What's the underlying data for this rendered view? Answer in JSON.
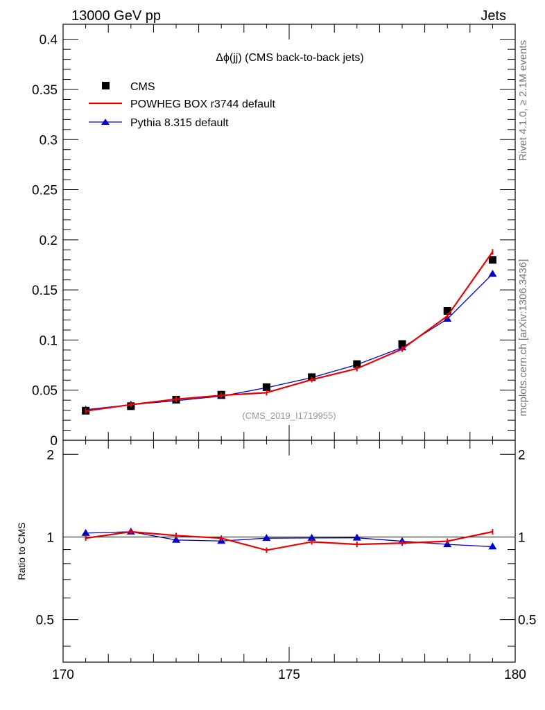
{
  "header": {
    "left": "13000 GeV pp",
    "right": "Jets"
  },
  "side_text": {
    "top": "Rivet 4.1.0, ≥ 2.1M events",
    "bottom": "mcplots.cern.ch [arXiv:1306.3436]"
  },
  "colors": {
    "data": "#000000",
    "powheg": "#ee0000",
    "pythia": "#0000cc"
  },
  "chart_data": [
    {
      "type": "line",
      "title": "Δϕ(jj) (CMS back-to-back jets)",
      "watermark": "(CMS_2019_I1719955)",
      "xlabel": "",
      "ylabel": "",
      "xlim": [
        170,
        180
      ],
      "ylim": [
        0,
        0.415
      ],
      "y_ticks": [
        0,
        0.05,
        0.1,
        0.15,
        0.2,
        0.25,
        0.3,
        0.35,
        0.4
      ],
      "y_tick_labels": [
        "0",
        "0.05",
        "0.1",
        "0.15",
        "0.2",
        "0.25",
        "0.3",
        "0.35",
        "0.4"
      ],
      "x": [
        170.5,
        171.5,
        172.5,
        173.5,
        174.5,
        175.5,
        176.5,
        177.5,
        178.5,
        179.5
      ],
      "legend": [
        "CMS",
        "POWHEG BOX r3744 default",
        "Pythia 8.315 default"
      ],
      "series": [
        {
          "name": "CMS",
          "style": "markers-square",
          "values": [
            0.0295,
            0.034,
            0.0405,
            0.0455,
            0.053,
            0.063,
            0.076,
            0.096,
            0.129,
            0.18
          ]
        },
        {
          "name": "POWHEG BOX r3744 default",
          "style": "line",
          "values": [
            0.0292,
            0.0356,
            0.041,
            0.0448,
            0.0475,
            0.0605,
            0.0715,
            0.091,
            0.124,
            0.188
          ]
        },
        {
          "name": "Pythia 8.315 default",
          "style": "line-triangles",
          "values": [
            0.0305,
            0.0355,
            0.0395,
            0.044,
            0.0525,
            0.0625,
            0.0755,
            0.0925,
            0.121,
            0.166
          ]
        }
      ]
    },
    {
      "type": "line",
      "title": "",
      "ylabel": "Ratio to CMS",
      "xlim": [
        170,
        180
      ],
      "ylim": [
        0.35,
        2.25
      ],
      "y_ticks": [
        0.5,
        1,
        2
      ],
      "y_tick_labels": [
        "0.5",
        "1",
        "2"
      ],
      "x_ticks": [
        170,
        175,
        180
      ],
      "x_tick_labels": [
        "170",
        "175",
        "180"
      ],
      "x": [
        170.5,
        171.5,
        172.5,
        173.5,
        174.5,
        175.5,
        176.5,
        177.5,
        178.5,
        179.5
      ],
      "series": [
        {
          "name": "POWHEG BOX r3744 default",
          "values": [
            0.99,
            1.045,
            1.012,
            0.99,
            0.895,
            0.96,
            0.94,
            0.95,
            0.965,
            1.045
          ]
        },
        {
          "name": "Pythia 8.315 default",
          "values": [
            1.033,
            1.045,
            0.975,
            0.967,
            0.99,
            0.992,
            0.993,
            0.965,
            0.94,
            0.922
          ]
        }
      ]
    }
  ]
}
